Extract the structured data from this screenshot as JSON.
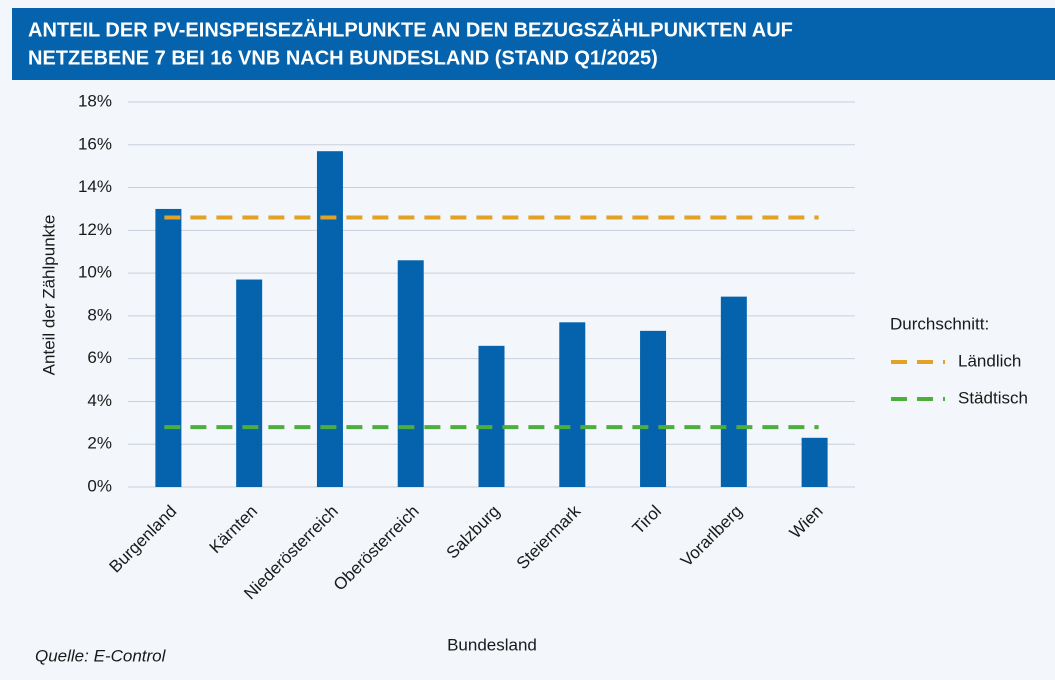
{
  "chart_data": {
    "type": "bar",
    "title": [
      "ANTEIL DER PV-EINSPEISEZÄHLPUNKTE AN DEN BEZUGSZÄHLPUNKTEN AUF",
      "NETZEBENE 7 BEI 16 VNB NACH BUNDESLAND (STAND Q1/2025)"
    ],
    "categories": [
      "Burgenland",
      "Kärnten",
      "Niederösterreich",
      "Oberösterreich",
      "Salzburg",
      "Steiermark",
      "Tirol",
      "Vorarlberg",
      "Wien"
    ],
    "values": [
      13.0,
      9.7,
      15.7,
      10.6,
      6.6,
      7.7,
      7.3,
      8.9,
      2.3
    ],
    "color": "#0563ad",
    "reference_lines": [
      {
        "name": "Ländlich",
        "color": "#e2a225",
        "value": 12.6
      },
      {
        "name": "Städtisch",
        "color": "#4cae3c",
        "value": 2.8
      }
    ],
    "legend_title": "Durchschnitt:",
    "legend_position": "right",
    "ylim": [
      0,
      18
    ],
    "yticks": [
      {
        "value": 0,
        "label": "0%"
      },
      {
        "value": 2,
        "label": "2%"
      },
      {
        "value": 4,
        "label": "4%"
      },
      {
        "value": 6,
        "label": "6%"
      },
      {
        "value": 8,
        "label": "8%"
      },
      {
        "value": 10,
        "label": "10%"
      },
      {
        "value": 12,
        "label": "12%"
      },
      {
        "value": 14,
        "label": "14%"
      },
      {
        "value": 16,
        "label": "16%"
      },
      {
        "value": 18,
        "label": "18%"
      }
    ],
    "grid": true,
    "x_label": "Bundesland",
    "y_label": "Anteil der Zählpunkte",
    "source": "Quelle: E-Control"
  }
}
